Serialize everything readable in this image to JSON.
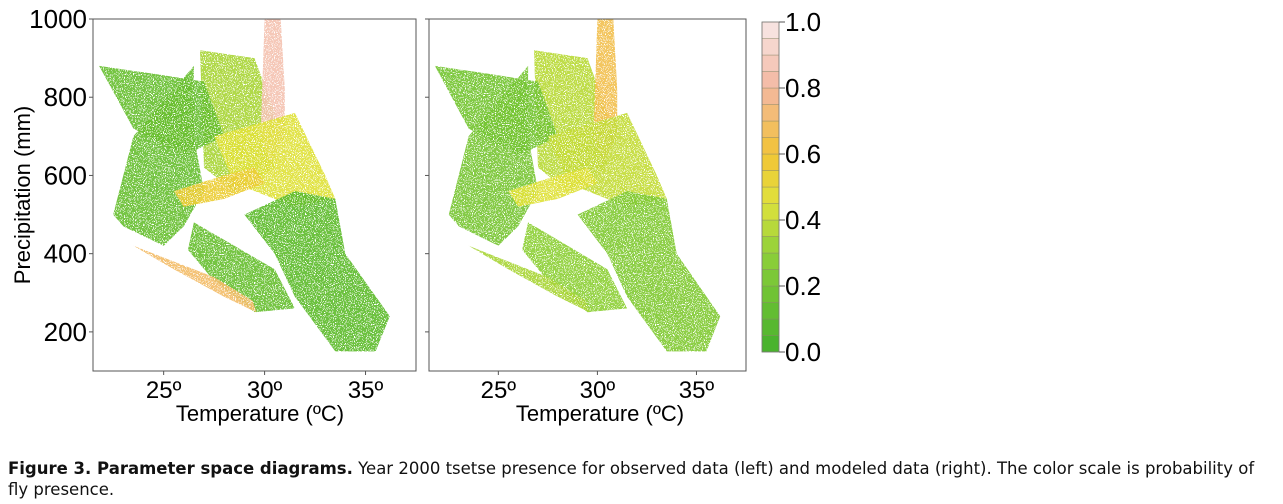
{
  "chart_data": [
    {
      "type": "scatter",
      "panel": "left",
      "description_title": "",
      "xlabel": "Temperature (ºC)",
      "ylabel": "Precipitation (mm)",
      "xlim": [
        21.5,
        37.5
      ],
      "ylim": [
        100,
        1000
      ],
      "x_ticks": [
        25,
        30,
        35
      ],
      "x_tick_labels": [
        "25º",
        "30º",
        "35º"
      ],
      "y_ticks": [
        200,
        400,
        600,
        800,
        1000
      ],
      "y_tick_labels": [
        "200",
        "400",
        "600",
        "800",
        "1000"
      ],
      "color_variable": "probability of fly presence",
      "regions": [
        {
          "points": [
            [
              22.5,
              500
            ],
            [
              23.5,
              700
            ],
            [
              25,
              790
            ],
            [
              26.5,
              880
            ],
            [
              26.5,
              700
            ],
            [
              27,
              560
            ],
            [
              26,
              470
            ],
            [
              25,
              420
            ],
            [
              23,
              470
            ]
          ],
          "value": 0.15
        },
        {
          "points": [
            [
              26.8,
              920
            ],
            [
              29.5,
              900
            ],
            [
              30.5,
              760
            ],
            [
              30.5,
              620
            ],
            [
              28.5,
              560
            ],
            [
              27,
              620
            ]
          ],
          "value": 0.35
        },
        {
          "points": [
            [
              30,
              1000
            ],
            [
              30.8,
              1000
            ],
            [
              31,
              820
            ],
            [
              31,
              700
            ],
            [
              30.3,
              630
            ],
            [
              29.8,
              700
            ]
          ],
          "value": 0.85
        },
        {
          "points": [
            [
              21.8,
              880
            ],
            [
              24.5,
              860
            ],
            [
              27,
              840
            ],
            [
              28,
              700
            ],
            [
              26,
              650
            ],
            [
              23.5,
              720
            ]
          ],
          "value": 0.15
        },
        {
          "points": [
            [
              27.5,
              700
            ],
            [
              31.5,
              760
            ],
            [
              33,
              600
            ],
            [
              33.5,
              540
            ],
            [
              31.5,
              520
            ],
            [
              28.5,
              580
            ]
          ],
          "value": 0.45
        },
        {
          "points": [
            [
              26.5,
              480
            ],
            [
              28.5,
              420
            ],
            [
              30.5,
              360
            ],
            [
              31.5,
              260
            ],
            [
              29.5,
              250
            ],
            [
              27.5,
              330
            ],
            [
              26.2,
              410
            ]
          ],
          "value": 0.15
        },
        {
          "points": [
            [
              23.5,
              420
            ],
            [
              25.5,
              360
            ],
            [
              28,
              290
            ],
            [
              29.6,
              250
            ],
            [
              29.4,
              280
            ],
            [
              27.5,
              340
            ],
            [
              25,
              390
            ]
          ],
          "value": 0.7
        },
        {
          "points": [
            [
              29,
              500
            ],
            [
              31.5,
              560
            ],
            [
              33.5,
              540
            ],
            [
              34,
              400
            ],
            [
              36.2,
              240
            ],
            [
              35.5,
              150
            ],
            [
              33.5,
              150
            ],
            [
              31.5,
              290
            ],
            [
              30.5,
              400
            ]
          ],
          "value": 0.12
        },
        {
          "points": [
            [
              25.5,
              560
            ],
            [
              28,
              600
            ],
            [
              29.5,
              620
            ],
            [
              30,
              580
            ],
            [
              28,
              540
            ],
            [
              26,
              520
            ]
          ],
          "value": 0.55
        }
      ]
    },
    {
      "type": "scatter",
      "panel": "right",
      "xlabel": "Temperature (ºC)",
      "ylabel": "",
      "xlim": [
        21.5,
        37.5
      ],
      "ylim": [
        100,
        1000
      ],
      "x_ticks": [
        25,
        30,
        35
      ],
      "x_tick_labels": [
        "25º",
        "30º",
        "35º"
      ],
      "y_ticks": [
        200,
        400,
        600,
        800,
        1000
      ],
      "y_tick_labels": [
        "",
        "",
        "",
        "",
        ""
      ],
      "color_variable": "probability of fly presence",
      "regions": [
        {
          "points": [
            [
              22.5,
              500
            ],
            [
              23.5,
              700
            ],
            [
              25,
              790
            ],
            [
              26.5,
              880
            ],
            [
              26.5,
              700
            ],
            [
              27,
              560
            ],
            [
              26,
              470
            ],
            [
              25,
              420
            ],
            [
              23,
              470
            ]
          ],
          "value": 0.22
        },
        {
          "points": [
            [
              26.8,
              920
            ],
            [
              29.5,
              900
            ],
            [
              30.5,
              760
            ],
            [
              30.5,
              620
            ],
            [
              28.5,
              560
            ],
            [
              27,
              620
            ]
          ],
          "value": 0.38
        },
        {
          "points": [
            [
              30,
              1000
            ],
            [
              30.8,
              1000
            ],
            [
              31,
              820
            ],
            [
              31,
              700
            ],
            [
              30.3,
              630
            ],
            [
              29.8,
              700
            ]
          ],
          "value": 0.65
        },
        {
          "points": [
            [
              21.8,
              880
            ],
            [
              24.5,
              860
            ],
            [
              27,
              840
            ],
            [
              28,
              700
            ],
            [
              26,
              650
            ],
            [
              23.5,
              720
            ]
          ],
          "value": 0.2
        },
        {
          "points": [
            [
              27.5,
              700
            ],
            [
              31.5,
              760
            ],
            [
              33,
              600
            ],
            [
              33.5,
              540
            ],
            [
              31.5,
              520
            ],
            [
              28.5,
              580
            ]
          ],
          "value": 0.4
        },
        {
          "points": [
            [
              26.5,
              480
            ],
            [
              28.5,
              420
            ],
            [
              30.5,
              360
            ],
            [
              31.5,
              260
            ],
            [
              29.5,
              250
            ],
            [
              27.5,
              330
            ],
            [
              26.2,
              410
            ]
          ],
          "value": 0.3
        },
        {
          "points": [
            [
              23.5,
              420
            ],
            [
              25.5,
              360
            ],
            [
              28,
              290
            ],
            [
              29.6,
              250
            ],
            [
              29.4,
              280
            ],
            [
              27.5,
              340
            ],
            [
              25,
              390
            ]
          ],
          "value": 0.35
        },
        {
          "points": [
            [
              29,
              500
            ],
            [
              31.5,
              560
            ],
            [
              33.5,
              540
            ],
            [
              34,
              400
            ],
            [
              36.2,
              240
            ],
            [
              35.5,
              150
            ],
            [
              33.5,
              150
            ],
            [
              31.5,
              290
            ],
            [
              30.5,
              400
            ]
          ],
          "value": 0.25
        },
        {
          "points": [
            [
              25.5,
              560
            ],
            [
              28,
              600
            ],
            [
              29.5,
              620
            ],
            [
              30,
              580
            ],
            [
              28,
              540
            ],
            [
              26,
              520
            ]
          ],
          "value": 0.45
        }
      ]
    }
  ],
  "colorbar": {
    "range": [
      0.0,
      1.0
    ],
    "steps": 20,
    "ticks": [
      {
        "value": 1.0,
        "label": "1.0"
      },
      {
        "value": 0.8,
        "label": "0.8"
      },
      {
        "value": 0.6,
        "label": "0.6"
      },
      {
        "value": 0.4,
        "label": "0.4"
      },
      {
        "value": 0.2,
        "label": "0.2"
      },
      {
        "value": 0.0,
        "label": "0.0"
      }
    ],
    "color_stops": [
      {
        "value": 0.0,
        "color": "#44b02c"
      },
      {
        "value": 0.3,
        "color": "#8fd03a"
      },
      {
        "value": 0.45,
        "color": "#dfe23c"
      },
      {
        "value": 0.6,
        "color": "#f2c436"
      },
      {
        "value": 0.8,
        "color": "#f3b7a0"
      },
      {
        "value": 1.0,
        "color": "#f8e8e8"
      }
    ]
  },
  "caption": {
    "label": "Figure 3. Parameter space diagrams.",
    "text": " Year 2000 tsetse presence for observed data (left) and modeled data (right). The color scale is probability of fly presence."
  }
}
